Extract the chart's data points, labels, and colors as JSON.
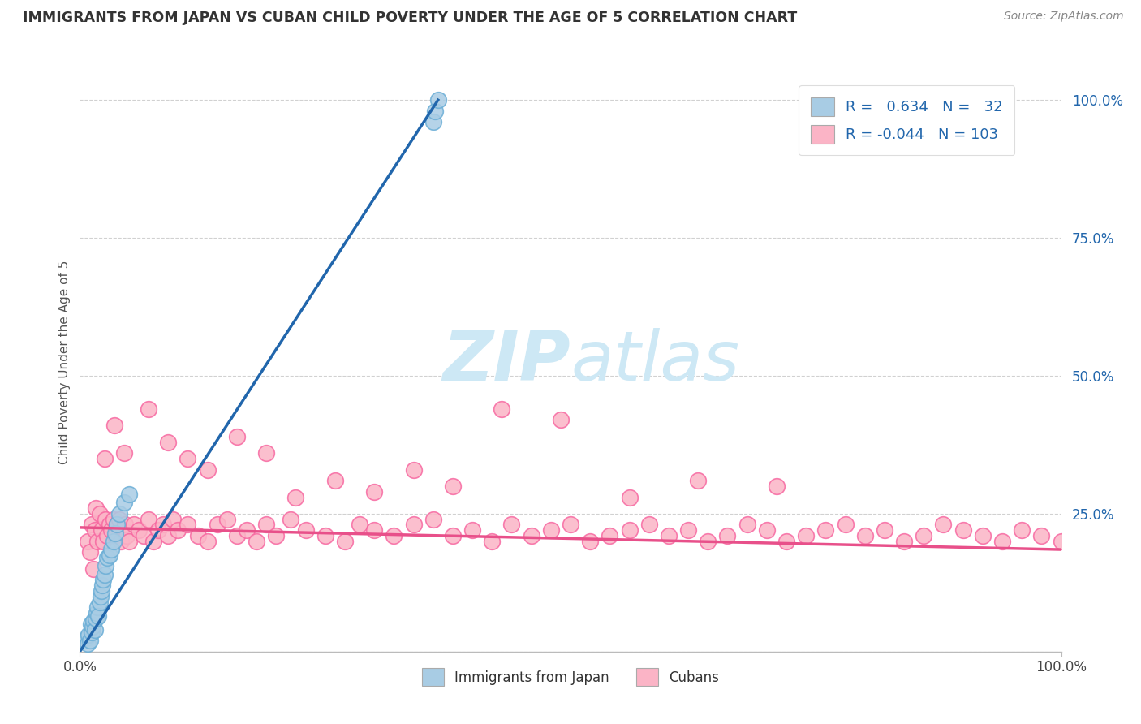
{
  "title": "IMMIGRANTS FROM JAPAN VS CUBAN CHILD POVERTY UNDER THE AGE OF 5 CORRELATION CHART",
  "source": "Source: ZipAtlas.com",
  "ylabel": "Child Poverty Under the Age of 5",
  "legend_japan_r": "0.634",
  "legend_japan_n": "32",
  "legend_cuba_r": "-0.044",
  "legend_cuba_n": "103",
  "legend_label_japan": "Immigrants from Japan",
  "legend_label_cuba": "Cubans",
  "japan_color": "#a8cce4",
  "japan_edge_color": "#6baed6",
  "cuba_color": "#fbb4c6",
  "cuba_edge_color": "#f768a1",
  "japan_line_color": "#2166ac",
  "cuba_line_color": "#e8508a",
  "watermark_color": "#cde8f5",
  "background_color": "#ffffff",
  "japan_x": [
    0.007,
    0.008,
    0.009,
    0.01,
    0.011,
    0.012,
    0.013,
    0.014,
    0.015,
    0.016,
    0.017,
    0.018,
    0.019,
    0.02,
    0.021,
    0.022,
    0.023,
    0.024,
    0.025,
    0.026,
    0.028,
    0.03,
    0.032,
    0.034,
    0.036,
    0.038,
    0.04,
    0.045,
    0.05,
    0.36,
    0.362,
    0.365
  ],
  "japan_y": [
    0.025,
    0.015,
    0.03,
    0.02,
    0.05,
    0.035,
    0.045,
    0.055,
    0.04,
    0.06,
    0.07,
    0.08,
    0.065,
    0.09,
    0.1,
    0.11,
    0.12,
    0.13,
    0.14,
    0.155,
    0.17,
    0.175,
    0.185,
    0.2,
    0.215,
    0.23,
    0.25,
    0.27,
    0.285,
    0.96,
    0.98,
    1.0
  ],
  "cuba_x": [
    0.008,
    0.01,
    0.012,
    0.014,
    0.015,
    0.016,
    0.018,
    0.02,
    0.022,
    0.024,
    0.026,
    0.028,
    0.03,
    0.032,
    0.034,
    0.036,
    0.038,
    0.04,
    0.042,
    0.044,
    0.046,
    0.048,
    0.05,
    0.055,
    0.06,
    0.065,
    0.07,
    0.075,
    0.08,
    0.085,
    0.09,
    0.095,
    0.1,
    0.11,
    0.12,
    0.13,
    0.14,
    0.15,
    0.16,
    0.17,
    0.18,
    0.19,
    0.2,
    0.215,
    0.23,
    0.25,
    0.27,
    0.285,
    0.3,
    0.32,
    0.34,
    0.36,
    0.38,
    0.4,
    0.42,
    0.44,
    0.46,
    0.48,
    0.5,
    0.52,
    0.54,
    0.56,
    0.58,
    0.6,
    0.62,
    0.64,
    0.66,
    0.68,
    0.7,
    0.72,
    0.74,
    0.76,
    0.78,
    0.8,
    0.82,
    0.84,
    0.86,
    0.88,
    0.9,
    0.92,
    0.94,
    0.96,
    0.98,
    1.0,
    0.025,
    0.035,
    0.045,
    0.07,
    0.09,
    0.11,
    0.13,
    0.16,
    0.19,
    0.22,
    0.26,
    0.3,
    0.34,
    0.38,
    0.43,
    0.49,
    0.56,
    0.63,
    0.71
  ],
  "cuba_y": [
    0.2,
    0.18,
    0.23,
    0.15,
    0.22,
    0.26,
    0.2,
    0.25,
    0.22,
    0.2,
    0.24,
    0.21,
    0.23,
    0.22,
    0.24,
    0.21,
    0.23,
    0.24,
    0.2,
    0.22,
    0.23,
    0.21,
    0.2,
    0.23,
    0.22,
    0.21,
    0.24,
    0.2,
    0.22,
    0.23,
    0.21,
    0.24,
    0.22,
    0.23,
    0.21,
    0.2,
    0.23,
    0.24,
    0.21,
    0.22,
    0.2,
    0.23,
    0.21,
    0.24,
    0.22,
    0.21,
    0.2,
    0.23,
    0.22,
    0.21,
    0.23,
    0.24,
    0.21,
    0.22,
    0.2,
    0.23,
    0.21,
    0.22,
    0.23,
    0.2,
    0.21,
    0.22,
    0.23,
    0.21,
    0.22,
    0.2,
    0.21,
    0.23,
    0.22,
    0.2,
    0.21,
    0.22,
    0.23,
    0.21,
    0.22,
    0.2,
    0.21,
    0.23,
    0.22,
    0.21,
    0.2,
    0.22,
    0.21,
    0.2,
    0.35,
    0.41,
    0.36,
    0.44,
    0.38,
    0.35,
    0.33,
    0.39,
    0.36,
    0.28,
    0.31,
    0.29,
    0.33,
    0.3,
    0.44,
    0.42,
    0.28,
    0.31,
    0.3
  ],
  "japan_line_x": [
    0.0,
    0.365
  ],
  "japan_line_y": [
    0.0,
    1.0
  ],
  "cuba_line_x": [
    0.0,
    1.0
  ],
  "cuba_line_y": [
    0.225,
    0.185
  ],
  "xlim": [
    0.0,
    1.0
  ],
  "ylim": [
    0.0,
    1.05
  ],
  "yticks": [
    0.0,
    0.25,
    0.5,
    0.75,
    1.0
  ],
  "ytick_labels": [
    "",
    "25.0%",
    "50.0%",
    "75.0%",
    "100.0%"
  ]
}
